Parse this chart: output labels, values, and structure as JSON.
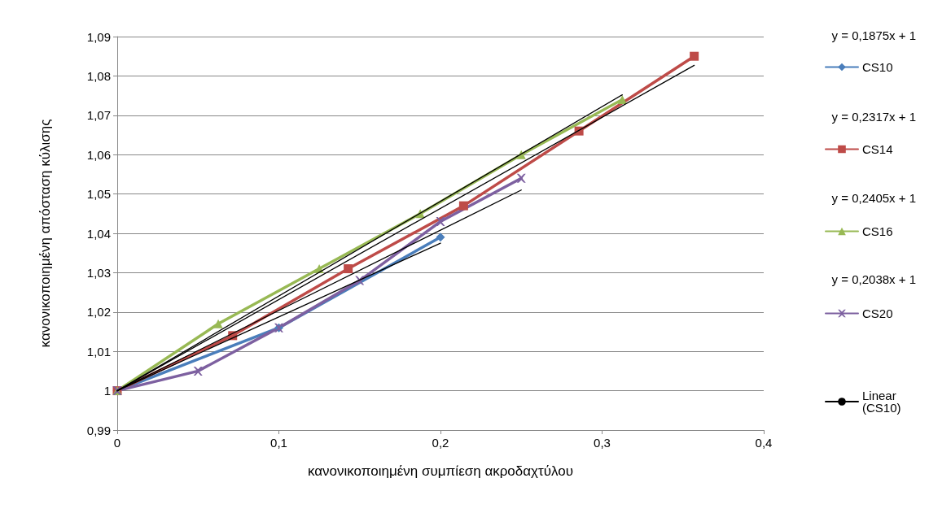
{
  "chart_data": {
    "type": "line",
    "xlabel": "κανονικοποιημένη συμπίεση ακροδαχτύλου",
    "ylabel": "κανονικοποιημένη απόσταση κύλισης",
    "xlim": [
      0,
      0.4
    ],
    "xticks": [
      0,
      {
        "value": 0.1,
        "label": "0,1"
      },
      {
        "value": 0.2,
        "label": "0,2"
      },
      {
        "value": 0.3,
        "label": "0,3"
      },
      {
        "value": 0.4,
        "label": "0,4"
      }
    ],
    "ylim": [
      0.99,
      1.09
    ],
    "yticks": [
      {
        "value": 0.99,
        "label": "0,99"
      },
      1,
      {
        "value": 1.01,
        "label": "1,01"
      },
      {
        "value": 1.02,
        "label": "1,02"
      },
      {
        "value": 1.03,
        "label": "1,03"
      },
      {
        "value": 1.04,
        "label": "1,04"
      },
      {
        "value": 1.05,
        "label": "1,05"
      },
      {
        "value": 1.06,
        "label": "1,06"
      },
      {
        "value": 1.07,
        "label": "1,07"
      },
      {
        "value": 1.08,
        "label": "1,08"
      },
      {
        "value": 1.09,
        "label": "1,09"
      }
    ],
    "grid": "y",
    "legend": "right",
    "annotations": [
      "y = 0,1875x + 1",
      "y = 0,2317x + 1",
      "y = 0,2405x + 1",
      "y = 0,2038x + 1"
    ],
    "series": [
      {
        "name": "CS10",
        "color": "#4a7ebb",
        "marker": "diamond",
        "x": [
          0,
          0.1,
          0.2
        ],
        "values": [
          1,
          1.016,
          1.039
        ]
      },
      {
        "name": "CS14",
        "color": "#be4b48",
        "marker": "square",
        "x": [
          0,
          0.0714,
          0.1429,
          0.2143,
          0.2857,
          0.357
        ],
        "values": [
          1,
          1.014,
          1.031,
          1.047,
          1.066,
          1.085
        ]
      },
      {
        "name": "CS16",
        "color": "#98b954",
        "marker": "triangle",
        "x": [
          0,
          0.0625,
          0.125,
          0.1875,
          0.25,
          0.3125
        ],
        "values": [
          1,
          1.017,
          1.031,
          1.045,
          1.06,
          1.074
        ]
      },
      {
        "name": "CS20",
        "color": "#7d60a0",
        "marker": "cross",
        "x": [
          0,
          0.05,
          0.1,
          0.15,
          0.2,
          0.25
        ],
        "values": [
          1,
          1.005,
          1.016,
          1.028,
          1.043,
          1.054
        ]
      },
      {
        "name": "Linear (CS10)",
        "color": "#000000",
        "marker": "none",
        "x": [
          0,
          0.2
        ],
        "values": [
          1,
          1.0375
        ]
      },
      {
        "color": "#000000",
        "marker": "none",
        "x": [
          0,
          0.357
        ],
        "values": [
          1,
          1.0827
        ]
      },
      {
        "color": "#000000",
        "marker": "none",
        "x": [
          0,
          0.3125
        ],
        "values": [
          1,
          1.0752
        ]
      },
      {
        "color": "#000000",
        "marker": "none",
        "x": [
          0,
          0.25
        ],
        "values": [
          1,
          1.051
        ]
      }
    ]
  }
}
